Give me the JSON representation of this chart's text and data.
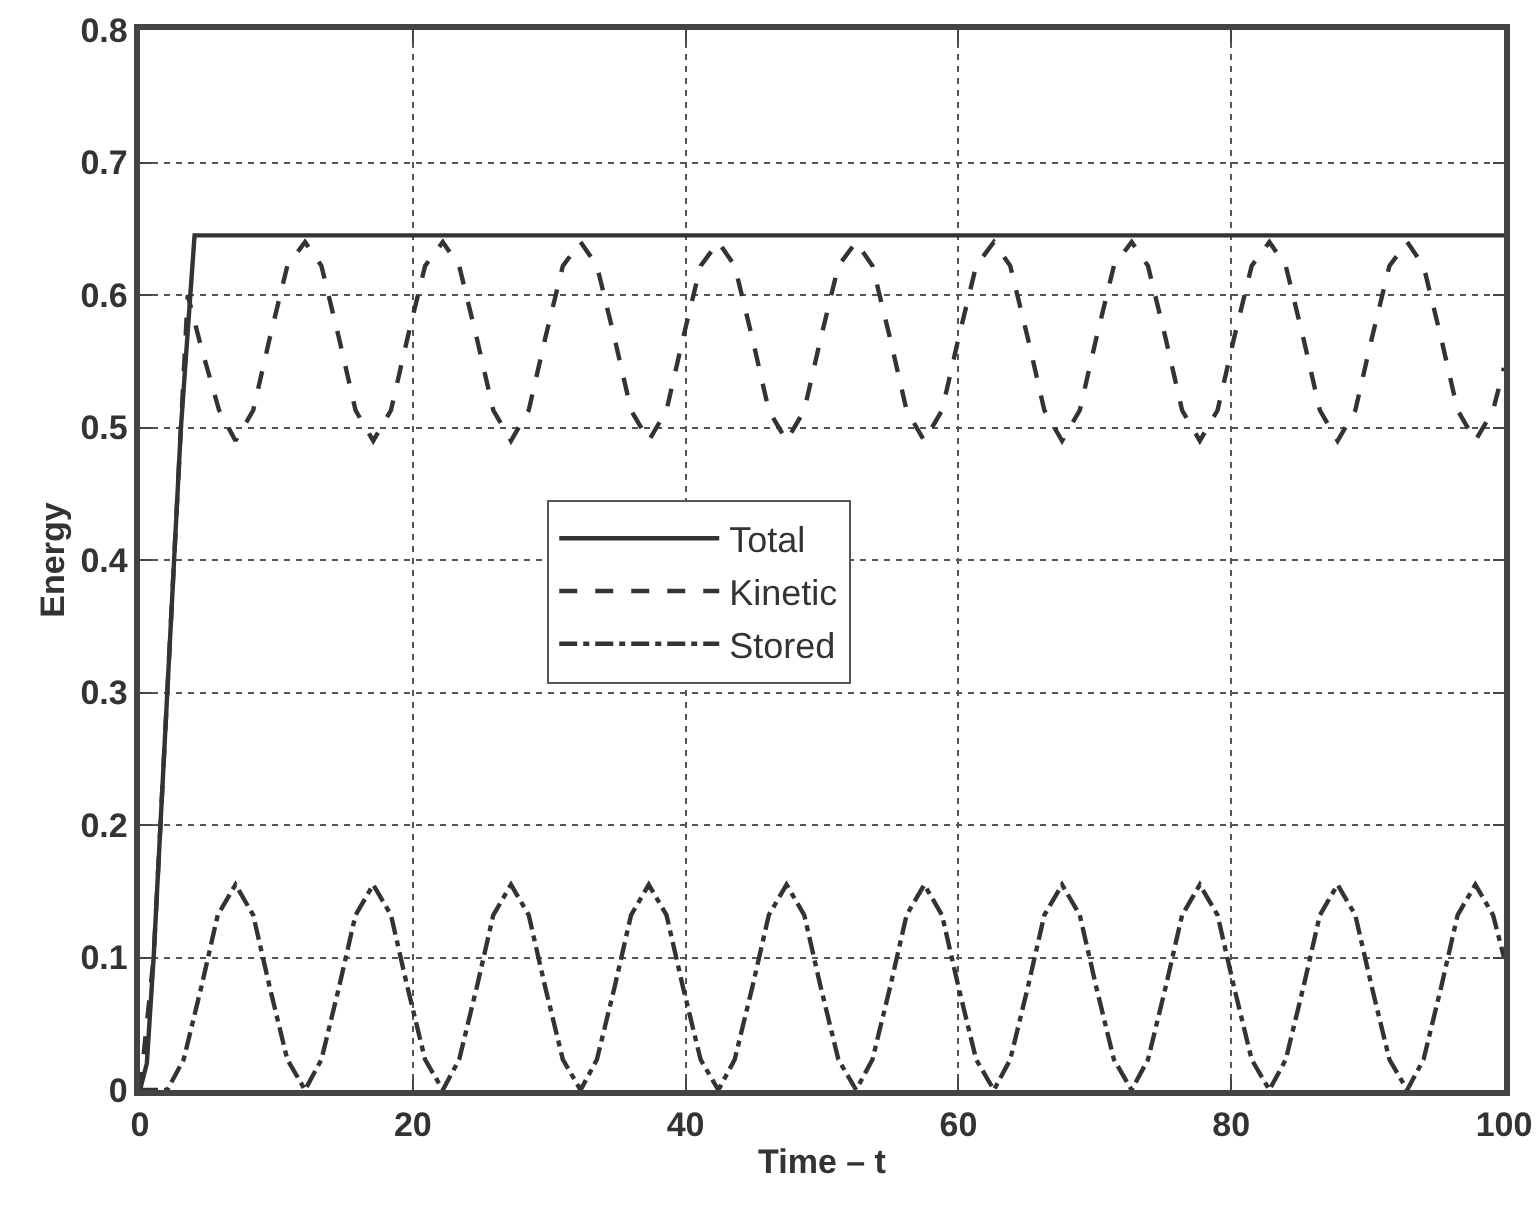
{
  "chart_data": {
    "type": "line",
    "xlabel": "Time – t",
    "ylabel": "Energy",
    "xlim": [
      0,
      100
    ],
    "xticks": [
      0,
      20,
      40,
      60,
      80,
      100
    ],
    "ylim": [
      0,
      0.8
    ],
    "yticks": [
      0,
      0.1,
      0.2,
      0.3,
      0.4,
      0.5,
      0.6,
      0.7,
      0.8
    ],
    "grid": true,
    "legend": "center",
    "series": [
      {
        "name": "Total",
        "color": "#333333",
        "line_style": "solid",
        "x": [
          0,
          0.5,
          1,
          2,
          3,
          4,
          100
        ],
        "values": [
          0,
          0.02,
          0.1,
          0.3,
          0.5,
          0.645,
          0.645
        ]
      },
      {
        "name": "Kinetic",
        "color": "#333333",
        "line_style": "dashed",
        "x": [
          0,
          1,
          2,
          3,
          3.5,
          4.5,
          5.8,
          7,
          8.3,
          9.5,
          10.8,
          12.1,
          13.3,
          14.6,
          15.8,
          17.1,
          18.4,
          19.6,
          20.9,
          22.2,
          23.4,
          24.7,
          25.9,
          27.2,
          28.5,
          29.7,
          31.0,
          32.3,
          33.5,
          34.8,
          36.0,
          37.3,
          38.6,
          39.8,
          41.1,
          42.4,
          43.6,
          44.9,
          46.1,
          47.4,
          48.7,
          49.9,
          51.2,
          52.5,
          53.7,
          55.0,
          56.2,
          57.5,
          58.8,
          60.0,
          61.3,
          62.6,
          63.8,
          65.1,
          66.3,
          67.6,
          68.9,
          70.1,
          71.4,
          72.7,
          73.9,
          75.2,
          76.4,
          77.7,
          79.0,
          80.2,
          81.5,
          82.8,
          84.0,
          85.3,
          86.5,
          87.8,
          89.1,
          90.3,
          91.6,
          92.9,
          94.1,
          95.4,
          96.6,
          97.9,
          99.2,
          100
        ],
        "values": [
          0,
          0.1,
          0.3,
          0.5,
          0.6,
          0.56,
          0.513,
          0.49,
          0.513,
          0.567,
          0.622,
          0.64,
          0.622,
          0.567,
          0.513,
          0.49,
          0.513,
          0.567,
          0.622,
          0.64,
          0.622,
          0.567,
          0.513,
          0.49,
          0.513,
          0.567,
          0.622,
          0.64,
          0.622,
          0.567,
          0.513,
          0.49,
          0.513,
          0.567,
          0.622,
          0.64,
          0.622,
          0.567,
          0.513,
          0.49,
          0.513,
          0.567,
          0.622,
          0.64,
          0.622,
          0.567,
          0.513,
          0.49,
          0.513,
          0.567,
          0.622,
          0.64,
          0.622,
          0.567,
          0.513,
          0.49,
          0.513,
          0.567,
          0.622,
          0.64,
          0.622,
          0.567,
          0.513,
          0.49,
          0.513,
          0.567,
          0.622,
          0.64,
          0.622,
          0.567,
          0.513,
          0.49,
          0.513,
          0.567,
          0.622,
          0.64,
          0.622,
          0.567,
          0.513,
          0.49,
          0.513,
          0.545
        ]
      },
      {
        "name": "Stored",
        "color": "#333333",
        "line_style": "dashdot",
        "x": [
          0,
          2,
          3.2,
          4.5,
          5.7,
          7,
          8.3,
          9.5,
          10.8,
          12.1,
          13.3,
          14.6,
          15.8,
          17.1,
          18.4,
          19.6,
          20.9,
          22.2,
          23.4,
          24.7,
          25.9,
          27.2,
          28.5,
          29.7,
          31.0,
          32.3,
          33.5,
          34.8,
          36.0,
          37.3,
          38.6,
          39.8,
          41.1,
          42.4,
          43.6,
          44.9,
          46.1,
          47.4,
          48.7,
          49.9,
          51.2,
          52.5,
          53.7,
          55.0,
          56.2,
          57.5,
          58.8,
          60.0,
          61.3,
          62.6,
          63.8,
          65.1,
          66.3,
          67.6,
          68.9,
          70.1,
          71.4,
          72.7,
          73.9,
          75.2,
          76.4,
          77.7,
          79.0,
          80.2,
          81.5,
          82.8,
          84.0,
          85.3,
          86.5,
          87.8,
          89.1,
          90.3,
          91.6,
          92.9,
          94.1,
          95.4,
          96.6,
          97.9,
          99.2,
          100
        ],
        "values": [
          0,
          0,
          0.023,
          0.078,
          0.132,
          0.155,
          0.132,
          0.078,
          0.023,
          0,
          0.023,
          0.078,
          0.132,
          0.155,
          0.132,
          0.078,
          0.023,
          0,
          0.023,
          0.078,
          0.132,
          0.155,
          0.132,
          0.078,
          0.023,
          0,
          0.023,
          0.078,
          0.132,
          0.155,
          0.132,
          0.078,
          0.023,
          0,
          0.023,
          0.078,
          0.132,
          0.155,
          0.132,
          0.078,
          0.023,
          0,
          0.023,
          0.078,
          0.132,
          0.155,
          0.132,
          0.078,
          0.023,
          0,
          0.023,
          0.078,
          0.132,
          0.155,
          0.132,
          0.078,
          0.023,
          0,
          0.023,
          0.078,
          0.132,
          0.155,
          0.132,
          0.078,
          0.023,
          0,
          0.023,
          0.078,
          0.132,
          0.155,
          0.132,
          0.078,
          0.023,
          0,
          0.023,
          0.078,
          0.132,
          0.155,
          0.132,
          0.1
        ]
      }
    ]
  }
}
